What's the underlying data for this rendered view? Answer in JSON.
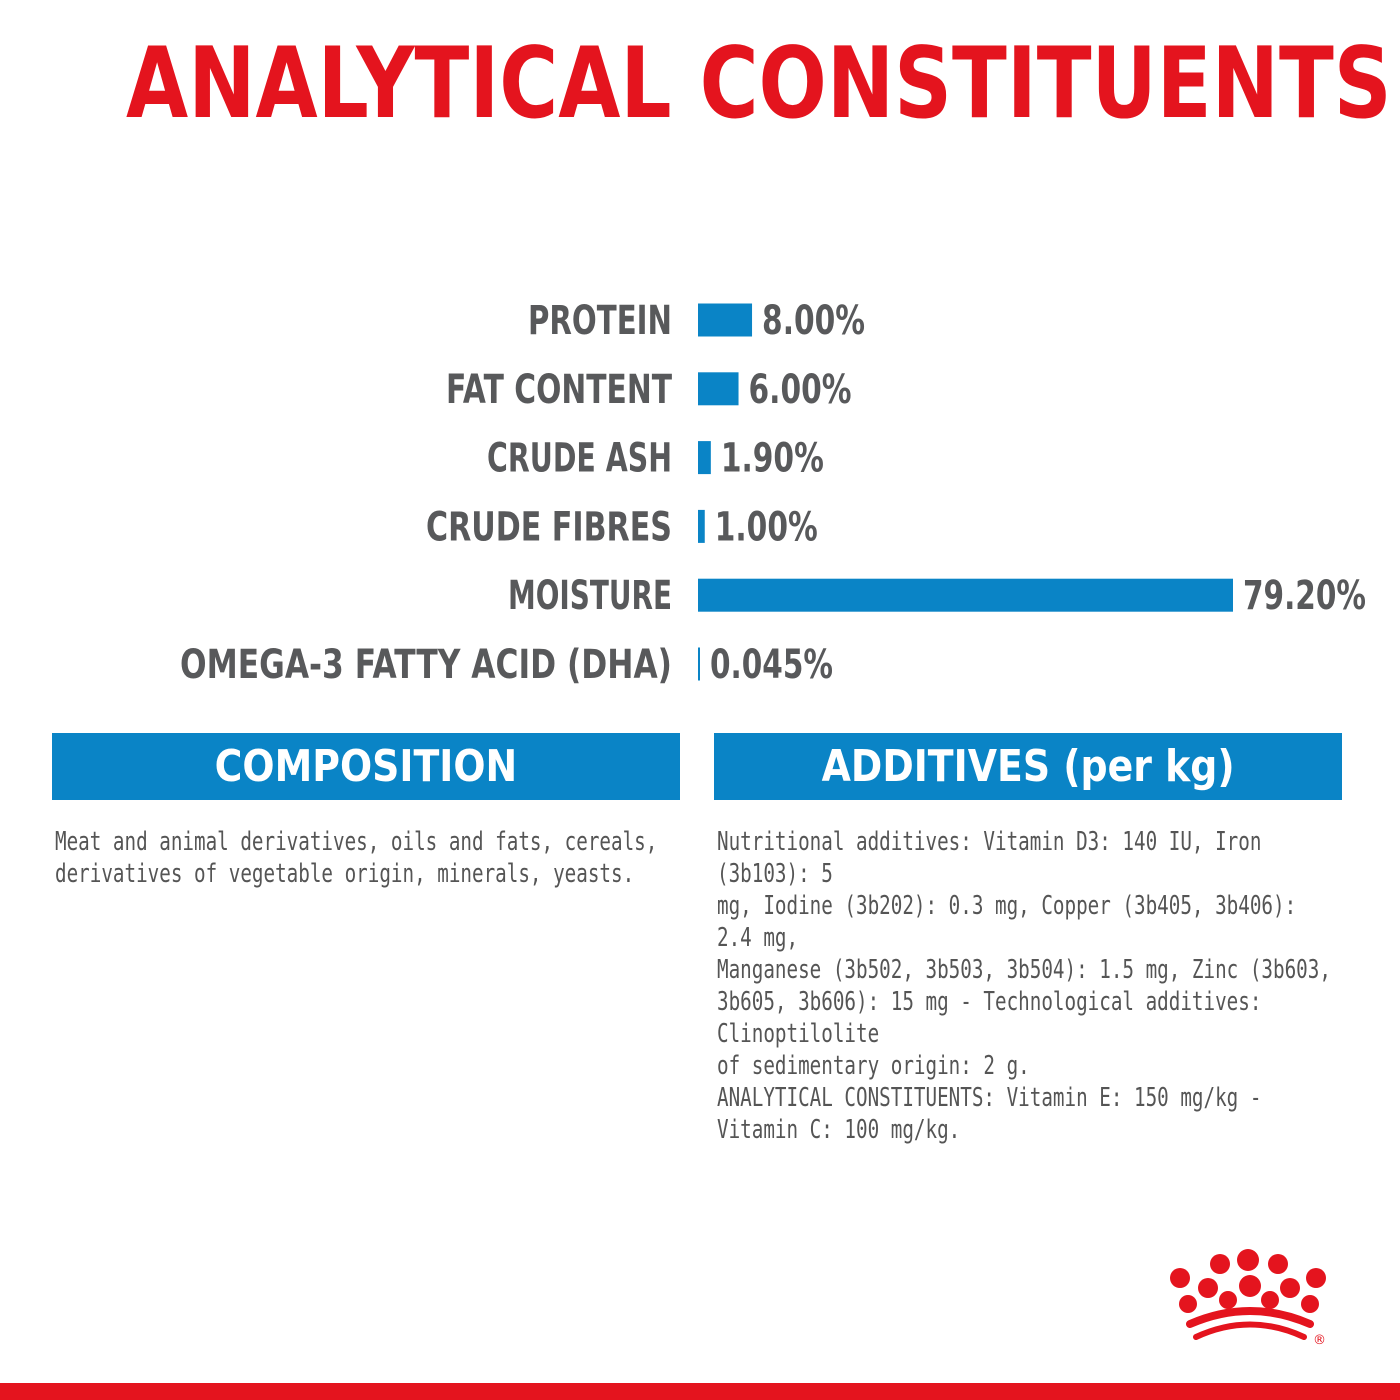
{
  "title": "ANALYTICAL CONSTITUENTS",
  "colors": {
    "title": "#e4141e",
    "bar": "#0a84c6",
    "label": "#58595b",
    "box": "#0a84c6",
    "logo": "#e4141e"
  },
  "chart_data": {
    "type": "bar",
    "orientation": "horizontal",
    "title": "ANALYTICAL CONSTITUENTS",
    "categories": [
      "PROTEIN",
      "FAT CONTENT",
      "CRUDE ASH",
      "CRUDE FIBRES",
      "MOISTURE",
      "OMEGA-3 FATTY ACID (DHA)"
    ],
    "values": [
      8.0,
      6.0,
      1.9,
      1.0,
      79.2,
      0.045
    ],
    "value_labels": [
      "8.00%",
      "6.00%",
      "1.90%",
      "1.00%",
      "79.20%",
      "0.045%"
    ],
    "unit": "%",
    "xlim": [
      0,
      79.2
    ],
    "grid": false,
    "legend": "none"
  },
  "composition": {
    "heading": "COMPOSITION",
    "lines": [
      "Meat and animal derivatives, oils and fats, cereals,",
      "derivatives of vegetable origin, minerals, yeasts."
    ]
  },
  "additives": {
    "heading": "ADDITIVES (per kg)",
    "lines": [
      "Nutritional additives: Vitamin D3: 140 IU, Iron (3b103): 5",
      "mg, Iodine (3b202): 0.3 mg, Copper (3b405, 3b406): 2.4 mg,",
      "Manganese (3b502, 3b503, 3b504): 1.5 mg, Zinc (3b603,",
      "3b605, 3b606): 15 mg - Technological additives: Clinoptilolite",
      "of sedimentary origin: 2 g.",
      "ANALYTICAL CONSTITUENTS: Vitamin E: 150 mg/kg -",
      "Vitamin C: 100 mg/kg."
    ]
  },
  "logo": {
    "icon": "crown-dots-logo-icon",
    "mark": "®"
  }
}
